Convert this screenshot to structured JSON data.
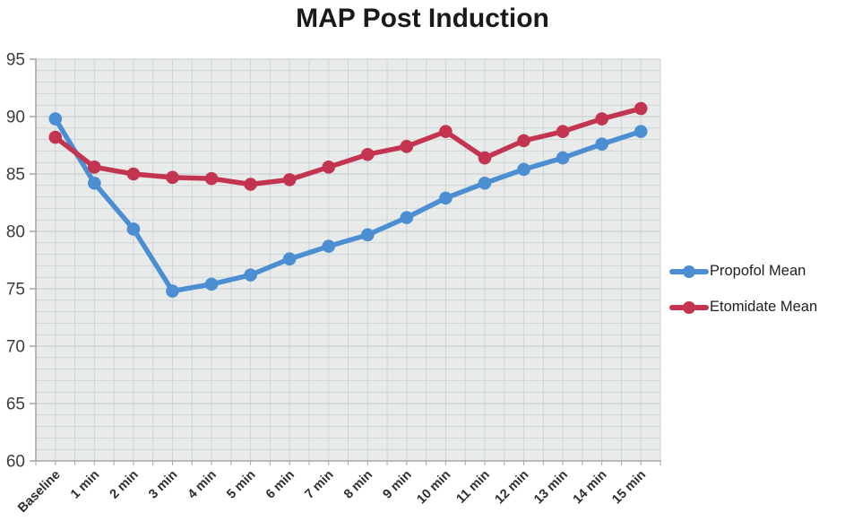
{
  "title": "MAP Post Induction",
  "colors": {
    "propofol": "#4b8fd2",
    "etomidate": "#c33450",
    "plot_background": "#e9ebeb",
    "grid_minor": "#ced4d4",
    "grid_major": "#c3c9c9",
    "axis": "#a3a9a9",
    "y_tick_label": "#3d3d3d",
    "x_tick_label": "#2e2e2e",
    "title_text": "#1a1a1a"
  },
  "chart_data": {
    "type": "line",
    "title": "MAP Post Induction",
    "categories": [
      "Baseline",
      "1 min",
      "2 min",
      "3 min",
      "4 min",
      "5 min",
      "6 min",
      "7 min",
      "8 min",
      "9 min",
      "10 min",
      "11 min",
      "12 min",
      "13 min",
      "14 min",
      "15 min"
    ],
    "series": [
      {
        "name": "Propofol Mean",
        "color": "#4b8fd2",
        "values": [
          89.8,
          84.2,
          80.2,
          74.8,
          75.4,
          76.2,
          77.6,
          78.7,
          79.7,
          81.2,
          82.9,
          84.2,
          85.4,
          86.4,
          87.6,
          88.7
        ]
      },
      {
        "name": "Etomidate Mean",
        "color": "#c33450",
        "values": [
          88.2,
          85.6,
          85.0,
          84.7,
          84.6,
          84.1,
          84.5,
          85.6,
          86.7,
          87.4,
          88.7,
          86.4,
          87.9,
          88.7,
          89.8,
          90.7
        ]
      }
    ],
    "ylim": [
      60,
      95
    ],
    "ytick_step": 5,
    "y_minor_step": 1,
    "x_minor_divisions_per_category": 2,
    "ytick_labels": [
      "95",
      "90",
      "85",
      "80",
      "75",
      "70",
      "65",
      "60"
    ],
    "grid": true,
    "legend_position": "right",
    "x_label_rotation_deg": -45
  },
  "legend": {
    "items": [
      {
        "label": "Propofol Mean"
      },
      {
        "label": "Etomidate Mean"
      }
    ]
  }
}
